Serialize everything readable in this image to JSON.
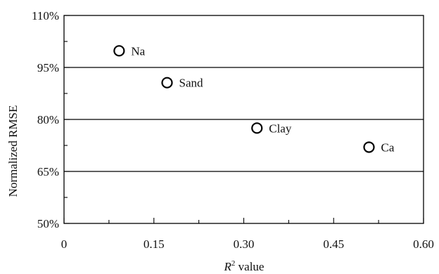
{
  "chart_data": {
    "type": "scatter",
    "title": "",
    "xlabel": "R² value",
    "xlabel_parts": {
      "var": "R",
      "sup": "2",
      "rest": " value"
    },
    "ylabel": "Normalized RMSE",
    "xlim": [
      0,
      0.6
    ],
    "ylim": [
      50,
      110
    ],
    "x_ticks": [
      "0",
      "0.15",
      "0.30",
      "0.45",
      "0.60"
    ],
    "y_ticks": [
      "50%",
      "65%",
      "80%",
      "95%",
      "110%"
    ],
    "x_tick_values": [
      0,
      0.15,
      0.3,
      0.45,
      0.6
    ],
    "y_tick_values": [
      50,
      65,
      80,
      95,
      110
    ],
    "x_minor_step": 0.075,
    "y_minor_step": 7.5,
    "gridlines_y": [
      65,
      80,
      95
    ],
    "grid": "horizontal major only",
    "marker": "open-circle",
    "color": "#000000",
    "points": [
      {
        "label": "Na",
        "x": 0.092,
        "y": 99.8
      },
      {
        "label": "Sand",
        "x": 0.172,
        "y": 90.6
      },
      {
        "label": "Clay",
        "x": 0.322,
        "y": 77.5
      },
      {
        "label": "Ca",
        "x": 0.509,
        "y": 72.0
      }
    ]
  }
}
